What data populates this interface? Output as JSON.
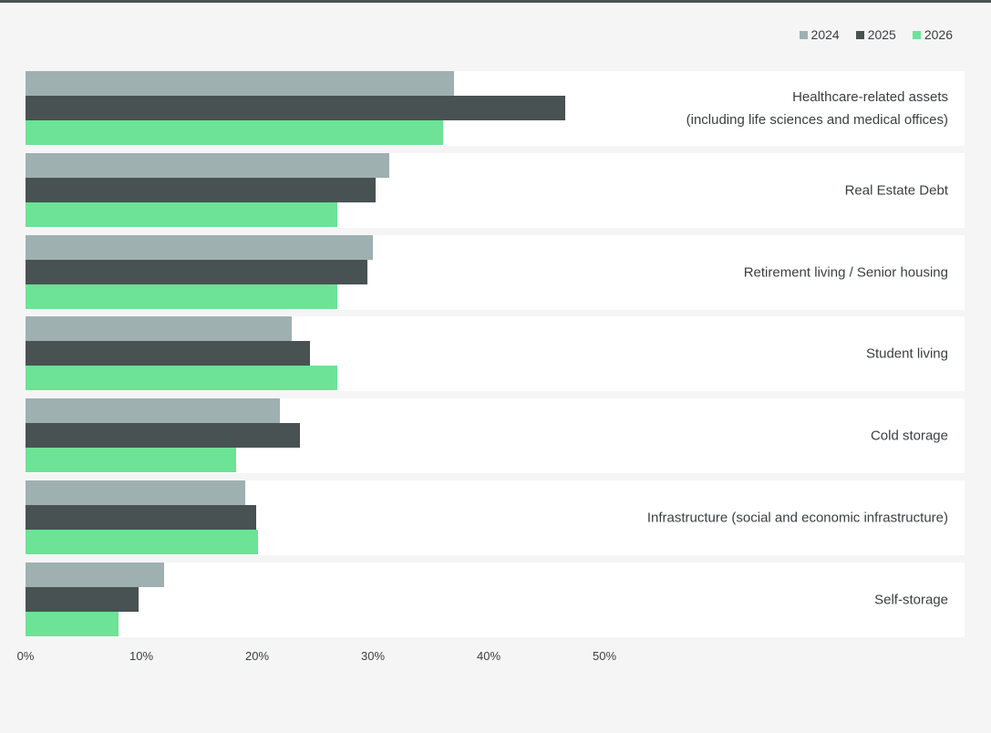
{
  "chart_data": {
    "type": "bar",
    "orientation": "horizontal",
    "categories": [
      [
        "Healthcare-related assets",
        "(including life sciences and medical offices)"
      ],
      [
        "Real Estate Debt"
      ],
      [
        "Retirement living / Senior housing"
      ],
      [
        "Student living"
      ],
      [
        "Cold storage"
      ],
      [
        "Infrastructure (social and economic infrastructure)"
      ],
      [
        "Self-storage"
      ]
    ],
    "series": [
      {
        "name": "2024",
        "color": "#9fb0b1",
        "values": [
          37.0,
          31.4,
          30.0,
          23.0,
          22.0,
          19.0,
          12.0
        ]
      },
      {
        "name": "2025",
        "color": "#485253",
        "values": [
          46.6,
          30.2,
          29.5,
          24.6,
          23.7,
          19.9,
          9.8
        ]
      },
      {
        "name": "2026",
        "color": "#6ce396",
        "values": [
          36.1,
          26.9,
          26.9,
          26.9,
          18.2,
          20.1,
          8.0
        ]
      }
    ],
    "xticks": [
      "0%",
      "10%",
      "20%",
      "30%",
      "40%",
      "50%"
    ],
    "xtick_values": [
      0,
      10,
      20,
      30,
      40,
      50
    ],
    "xlim": [
      0,
      81.1
    ],
    "legend_position": "top-right",
    "title": "",
    "xlabel": "",
    "ylabel": ""
  }
}
